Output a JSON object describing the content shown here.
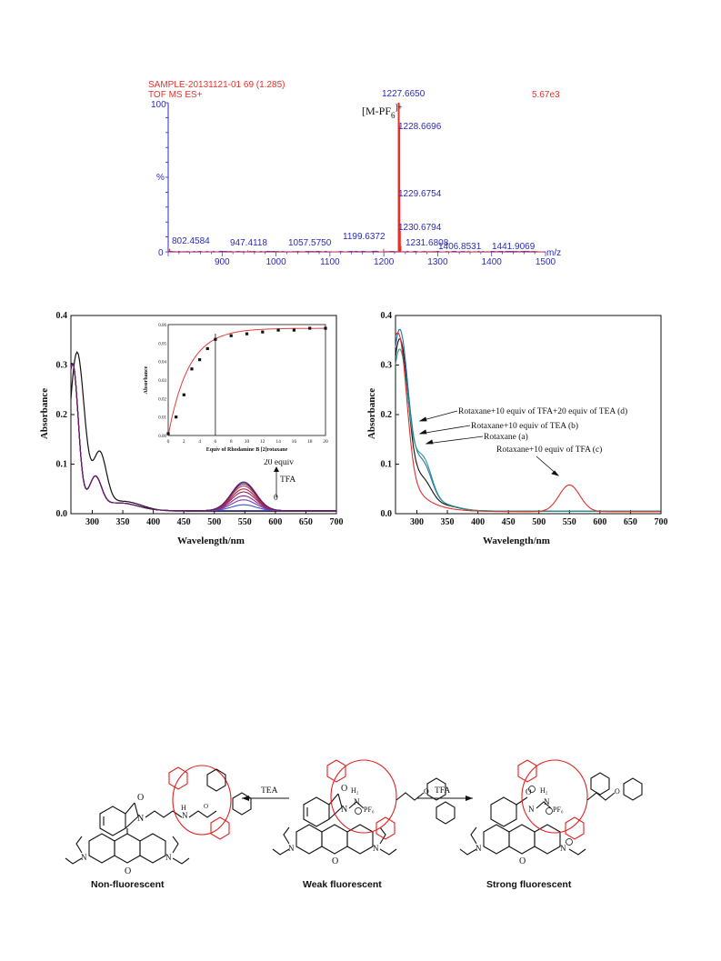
{
  "colors": {
    "ms_red": "#e8302a",
    "ms_blue": "#2b2bb8",
    "fit_red": "#e0403a"
  },
  "ms": {
    "sample_line": "SAMPLE-20131121-01 69 (1.285)",
    "mode_line": "TOF MS ES+",
    "intensity": "5.67e3",
    "ion_label_main": "[M-PF",
    "ion_label_sub": "6",
    "ion_label_sup": "]+",
    "y_top": "100",
    "y_pct": "%",
    "y_zero": "0",
    "x_unit": "m/z",
    "x_ticks": [
      "900",
      "1000",
      "1100",
      "1200",
      "1300",
      "1400",
      "1500"
    ],
    "peak_labels": [
      "1227.6650",
      "1228.6696",
      "1229.6754",
      "1230.6794",
      "1231.6808",
      "802.4584",
      "947.4118",
      "1057.5750",
      "1199.6372",
      "1406.8531",
      "1441.9069"
    ]
  },
  "chart_data": [
    {
      "type": "bar",
      "title": "SAMPLE-20131121-01 69 (1.285)",
      "xlabel": "m/z",
      "ylabel": "%",
      "xlim": [
        800,
        1500
      ],
      "ylim": [
        0,
        100
      ],
      "peaks": [
        {
          "mz": 802.4584,
          "intensity": 2
        },
        {
          "mz": 947.4118,
          "intensity": 1
        },
        {
          "mz": 1057.575,
          "intensity": 0.5
        },
        {
          "mz": 1199.6372,
          "intensity": 2
        },
        {
          "mz": 1227.665,
          "intensity": 100
        },
        {
          "mz": 1228.6696,
          "intensity": 85
        },
        {
          "mz": 1229.6754,
          "intensity": 38
        },
        {
          "mz": 1230.6794,
          "intensity": 14
        },
        {
          "mz": 1231.6808,
          "intensity": 4
        },
        {
          "mz": 1406.8531,
          "intensity": 0.5
        },
        {
          "mz": 1441.9069,
          "intensity": 0.5
        }
      ]
    },
    {
      "type": "line",
      "xlabel": "Wavelength/nm",
      "ylabel": "Absorbance",
      "xlim": [
        265,
        700
      ],
      "ylim": [
        0,
        0.4
      ],
      "x_ticks": [
        "300",
        "350",
        "400",
        "450",
        "500",
        "550",
        "600",
        "650",
        "700"
      ],
      "y_ticks": [
        "0.0",
        "0.1",
        "0.2",
        "0.3",
        "0.4"
      ],
      "annotation_top": "20 equiv",
      "annotation_mid": "TFA",
      "annotation_bottom": "0",
      "series_peak550": [
        0.0,
        0.012,
        0.022,
        0.03,
        0.038,
        0.044,
        0.05,
        0.054,
        0.057,
        0.058
      ]
    },
    {
      "type": "scatter",
      "xlabel": "Equiv of Rhodamine B [2]rotaxane",
      "ylabel": "Absorbance",
      "xlim": [
        0,
        20
      ],
      "ylim": [
        0,
        0.06
      ],
      "x_ticks": [
        "0",
        "2",
        "4",
        "6",
        "8",
        "10",
        "12",
        "14",
        "16",
        "18",
        "20"
      ],
      "y_ticks": [
        "0.00",
        "0.01",
        "0.02",
        "0.03",
        "0.04",
        "0.05",
        "0.06"
      ],
      "x": [
        0,
        1,
        2,
        3,
        4,
        5,
        6,
        8,
        10,
        12,
        14,
        16,
        18,
        20
      ],
      "y": [
        0.001,
        0.01,
        0.022,
        0.036,
        0.041,
        0.047,
        0.052,
        0.054,
        0.055,
        0.056,
        0.057,
        0.057,
        0.058,
        0.058
      ],
      "marker_x": 6
    },
    {
      "type": "line",
      "xlabel": "Wavelength/nm",
      "ylabel": "Absorbance",
      "xlim": [
        265,
        700
      ],
      "ylim": [
        0,
        0.4
      ],
      "x_ticks": [
        "300",
        "350",
        "400",
        "450",
        "500",
        "550",
        "600",
        "650",
        "700"
      ],
      "y_ticks": [
        "0.0",
        "0.1",
        "0.2",
        "0.3",
        "0.4"
      ],
      "labels": [
        "Rotaxane+10 equiv of TFA+20 equiv of TEA  (d)",
        "Rotaxane+10 equiv of TEA (b)",
        "Rotaxane  (a)",
        "Rotaxane+10 equiv of TFA  (c)"
      ]
    }
  ],
  "scheme": {
    "arrow_left": "TEA",
    "arrow_right": "TFA",
    "captions": [
      "Non-fluorescent",
      "Weak fluorescent",
      "Strong fluorescent"
    ]
  }
}
